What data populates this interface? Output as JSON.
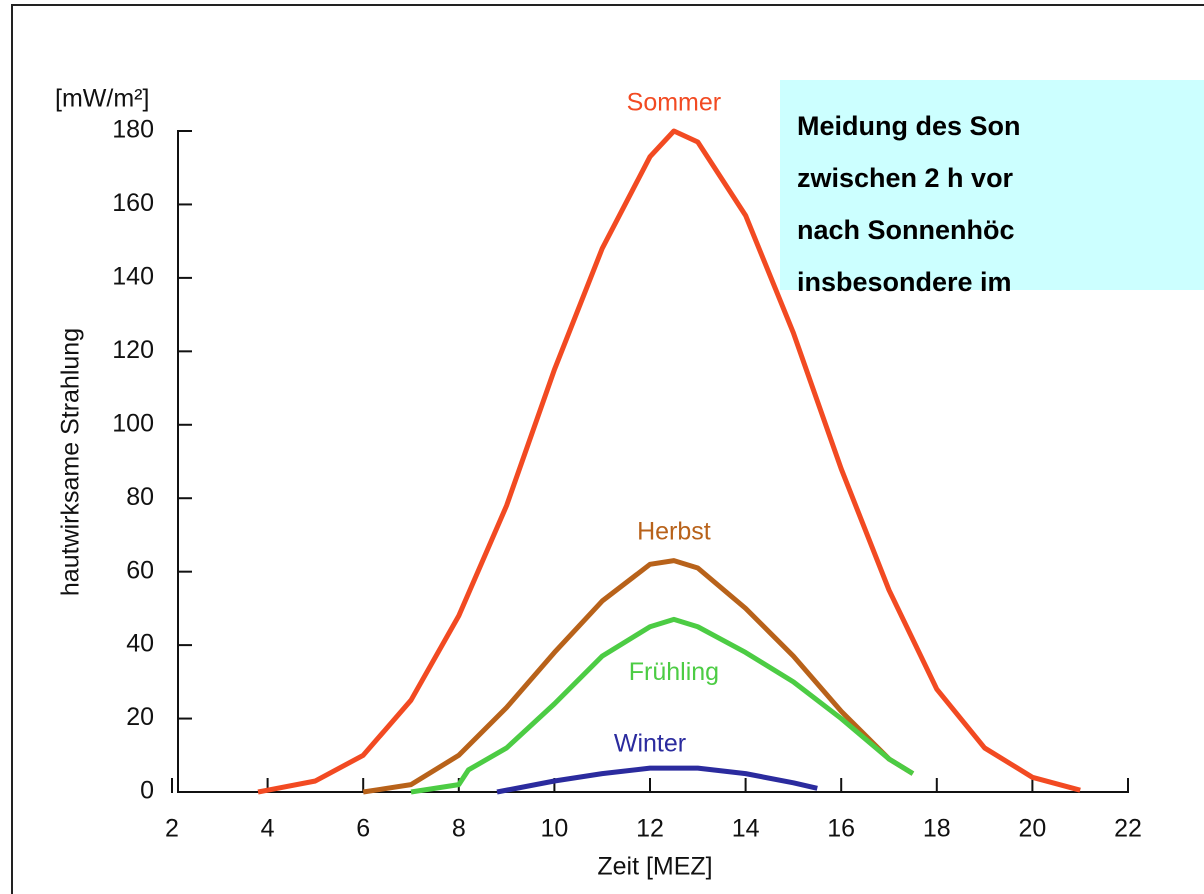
{
  "chart_data": {
    "type": "line",
    "y_unit": "[mW/m²]",
    "ylabel": "hautwirksame Strahlung",
    "xlabel": "Zeit [MEZ]",
    "xlim": [
      2,
      22
    ],
    "xticks": [
      2,
      4,
      6,
      8,
      10,
      12,
      14,
      16,
      18,
      20,
      22
    ],
    "ylim": [
      0,
      180
    ],
    "yticks": [
      0,
      20,
      40,
      60,
      80,
      100,
      120,
      140,
      160,
      180
    ],
    "series": [
      {
        "name": "Sommer",
        "color": "#f24a22",
        "x": [
          3.8,
          4,
          5,
          6,
          7,
          8,
          9,
          10,
          11,
          12,
          12.5,
          13,
          14,
          15,
          16,
          17,
          18,
          19,
          20,
          21
        ],
        "values": [
          0,
          0.5,
          3,
          10,
          25,
          48,
          78,
          115,
          148,
          173,
          180,
          177,
          157,
          125,
          88,
          55,
          28,
          12,
          4,
          0.5
        ]
      },
      {
        "name": "Herbst",
        "color": "#b8621a",
        "x": [
          6,
          7,
          8,
          9,
          10,
          11,
          12,
          12.5,
          13,
          14,
          15,
          16,
          17,
          17.5
        ],
        "values": [
          0,
          2,
          10,
          23,
          38,
          52,
          62,
          63,
          61,
          50,
          37,
          22,
          9,
          5
        ]
      },
      {
        "name": "Frühling",
        "color": "#4ccc44",
        "x": [
          7,
          8,
          8.2,
          9,
          10,
          11,
          12,
          12.5,
          13,
          14,
          15,
          16,
          17,
          17.5
        ],
        "values": [
          0,
          2,
          6,
          12,
          24,
          37,
          45,
          47,
          45,
          38,
          30,
          20,
          9,
          5
        ]
      },
      {
        "name": "Winter",
        "color": "#2b2b9e",
        "x": [
          8.8,
          10,
          11,
          12,
          13,
          14,
          15,
          15.5
        ],
        "values": [
          0,
          3,
          5,
          6.5,
          6.5,
          5,
          2.5,
          1
        ]
      }
    ],
    "note": [
      "Meidung des Son",
      "zwischen 2 h vor",
      "nach Sonnenhöc",
      "insbesondere im"
    ]
  }
}
